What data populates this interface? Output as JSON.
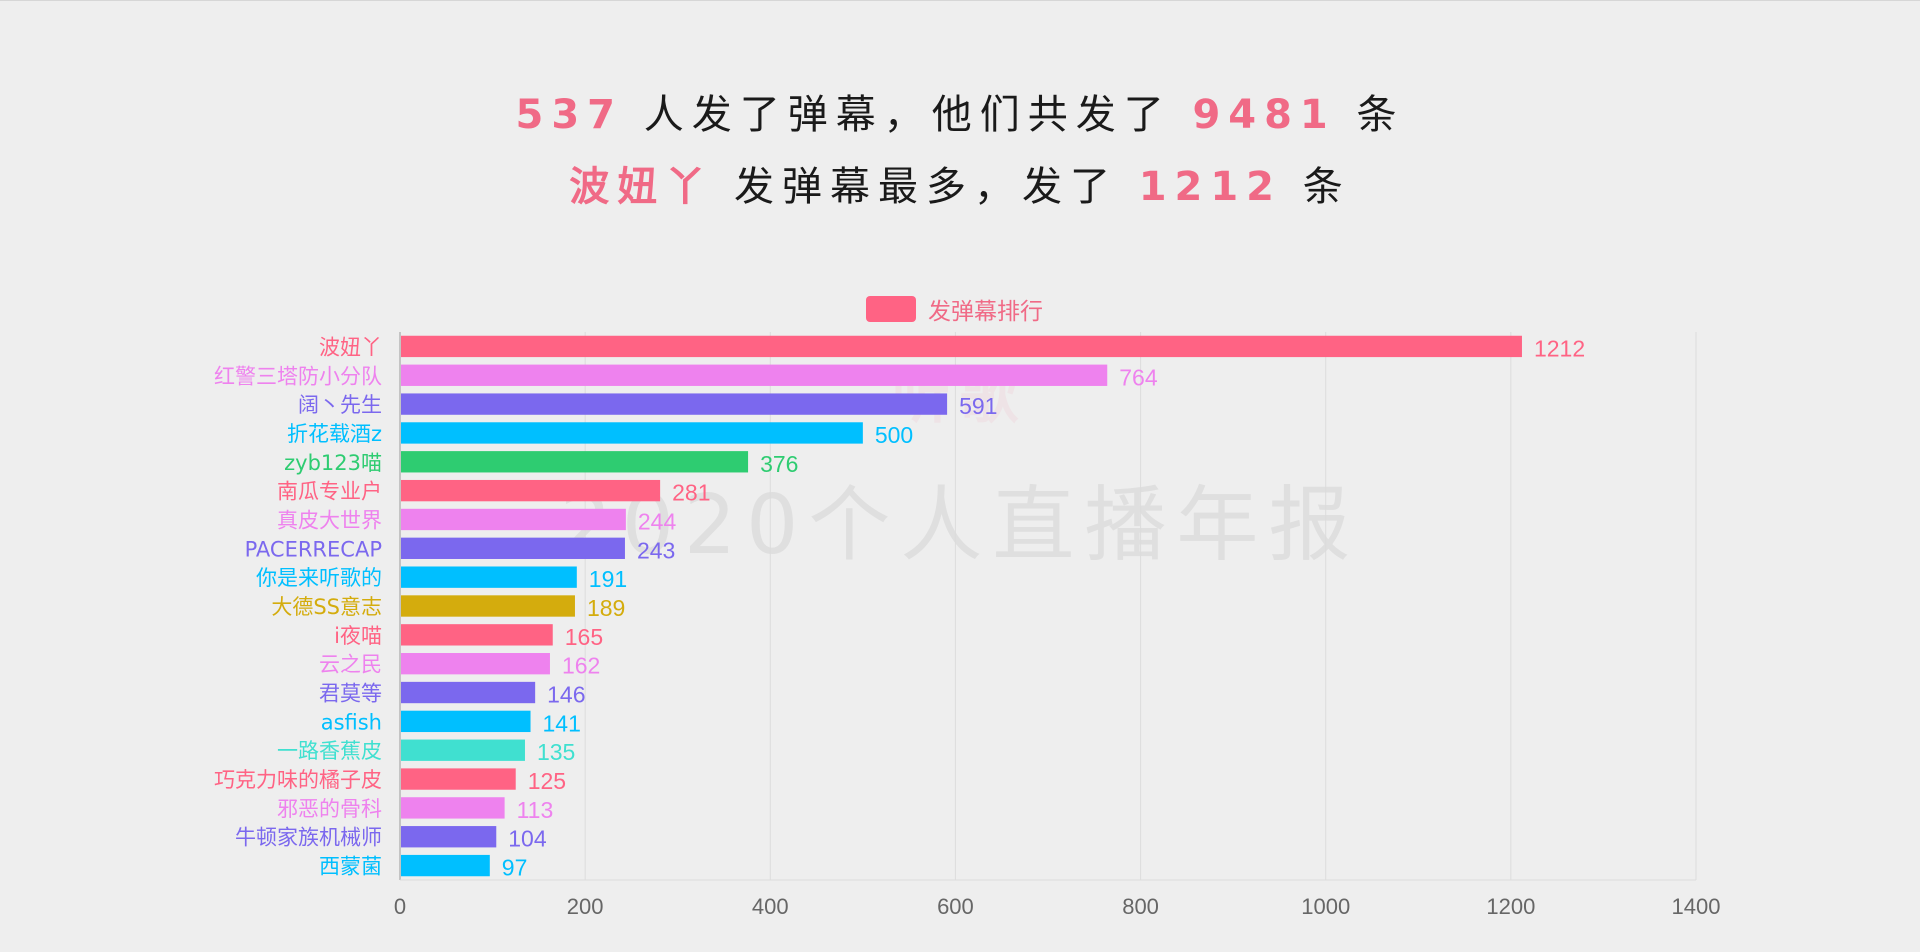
{
  "headline": {
    "line1": {
      "count_people": "537",
      "text_a": "人发了弹幕，他们共发了",
      "count_total": "9481",
      "text_b": "条"
    },
    "line2": {
      "top_user": "波妞丫",
      "text_a": "发弹幕最多，发了",
      "top_count": "1212",
      "text_b": "条"
    }
  },
  "watermark": {
    "logo": "听歌",
    "text": "2020个人直播年报"
  },
  "legend": {
    "label": "发弹幕排行",
    "color": "#ff6384"
  },
  "chart_data": {
    "type": "bar",
    "orientation": "horizontal",
    "title": "",
    "xlabel": "",
    "ylabel": "",
    "xlim": [
      0,
      1400
    ],
    "x_ticks": [
      0,
      200,
      400,
      600,
      800,
      1000,
      1200,
      1400
    ],
    "grid": true,
    "legend_position": "top",
    "series": [
      {
        "name": "发弹幕排行"
      }
    ],
    "categories": [
      "波妞丫",
      "红警三塔防小分队",
      "阔丶先生",
      "折花载酒z",
      "zyb123喵",
      "南瓜专业户",
      "真皮大世界",
      "PACERRECAP",
      "你是来听歌的",
      "大德SS意志",
      "i夜喵",
      "云之民",
      "君莫等",
      "asfish",
      "一路香蕉皮",
      "巧克力味的橘子皮",
      "邪恶的骨科",
      "牛顿家族机械师",
      "西蒙菌"
    ],
    "values": [
      1212,
      764,
      591,
      500,
      376,
      281,
      244,
      243,
      191,
      189,
      165,
      162,
      146,
      141,
      135,
      125,
      113,
      104,
      97
    ],
    "colors": [
      "#ff6384",
      "#ee82ee",
      "#7b68ee",
      "#00bfff",
      "#2ecc71",
      "#ff6384",
      "#ee82ee",
      "#7b68ee",
      "#00bfff",
      "#d4ac0d",
      "#ff6384",
      "#ee82ee",
      "#7b68ee",
      "#00bfff",
      "#40e0d0",
      "#ff6384",
      "#ee82ee",
      "#7b68ee",
      "#00bfff"
    ]
  }
}
